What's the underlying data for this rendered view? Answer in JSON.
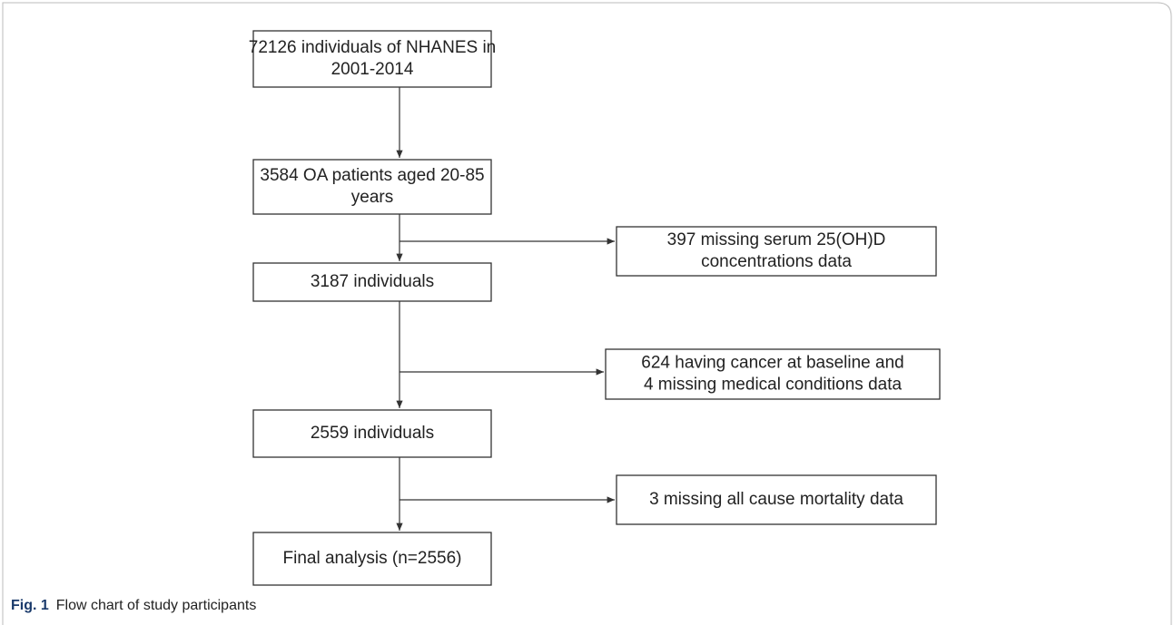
{
  "nodes": [
    {
      "lines": [
        "72126 individuals of NHANES in",
        "2001-2014"
      ]
    },
    {
      "lines": [
        "3584 OA patients aged 20-85",
        "years"
      ]
    },
    {
      "lines": [
        "3187 individuals"
      ]
    },
    {
      "lines": [
        "2559 individuals"
      ]
    },
    {
      "lines": [
        "Final analysis (n=2556)"
      ]
    }
  ],
  "exclusions": [
    {
      "lines": [
        "397 missing serum 25(OH)D",
        "concentrations data"
      ]
    },
    {
      "lines": [
        "624 having cancer at baseline and",
        "4 missing medical conditions data"
      ]
    },
    {
      "lines": [
        "3 missing all cause mortality data"
      ]
    }
  ],
  "caption": {
    "label": "Fig. 1",
    "text": "Flow chart of study participants"
  }
}
